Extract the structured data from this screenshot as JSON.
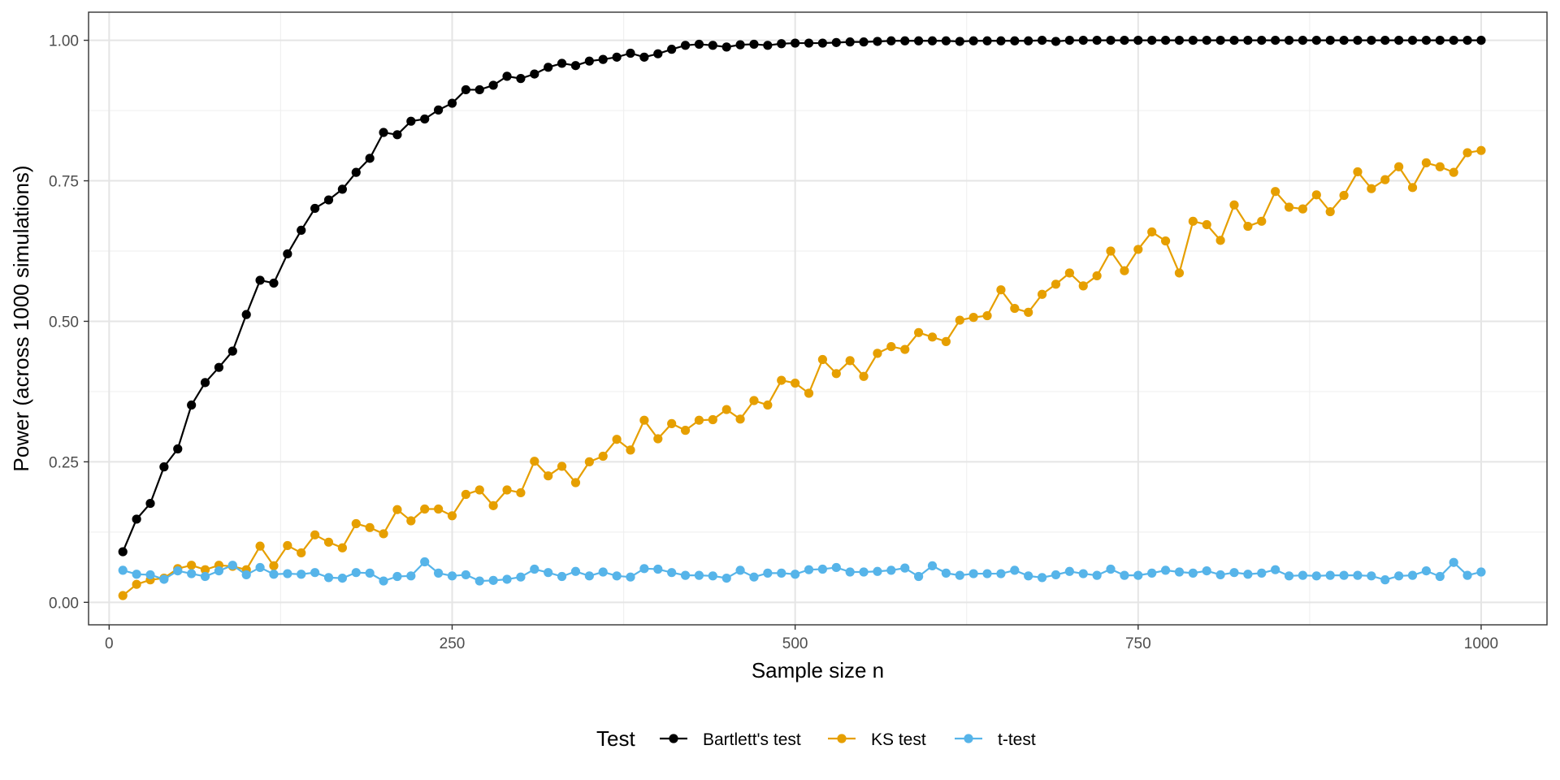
{
  "chart_data": {
    "type": "line",
    "xlabel": "Sample size n",
    "ylabel": "Power (across 1000 simulations)",
    "xlim": [
      -15,
      1048
    ],
    "ylim": [
      -0.04,
      1.05
    ],
    "x_ticks": [
      0,
      250,
      500,
      750,
      1000
    ],
    "x_tick_labels": [
      "0",
      "250",
      "500",
      "750",
      "1000"
    ],
    "y_ticks": [
      0,
      0.25,
      0.5,
      0.75,
      1.0
    ],
    "y_tick_labels": [
      "0.00",
      "0.25",
      "0.50",
      "0.75",
      "1.00"
    ],
    "grid": true,
    "legend": {
      "title": "Test",
      "position": "bottom"
    },
    "x": [
      10,
      20,
      30,
      40,
      50,
      60,
      70,
      80,
      90,
      100,
      110,
      120,
      130,
      140,
      150,
      160,
      170,
      180,
      190,
      200,
      210,
      220,
      230,
      240,
      250,
      260,
      270,
      280,
      290,
      300,
      310,
      320,
      330,
      340,
      350,
      360,
      370,
      380,
      390,
      400,
      410,
      420,
      430,
      440,
      450,
      460,
      470,
      480,
      490,
      500,
      510,
      520,
      530,
      540,
      550,
      560,
      570,
      580,
      590,
      600,
      610,
      620,
      630,
      640,
      650,
      660,
      670,
      680,
      690,
      700,
      710,
      720,
      730,
      740,
      750,
      760,
      770,
      780,
      790,
      800,
      810,
      820,
      830,
      840,
      850,
      860,
      870,
      880,
      890,
      900,
      910,
      920,
      930,
      940,
      950,
      960,
      970,
      980,
      990,
      1000
    ],
    "series": [
      {
        "name": "Bartlett's test",
        "color": "#000000",
        "values": [
          0.09,
          0.148,
          0.176,
          0.241,
          0.273,
          0.351,
          0.391,
          0.418,
          0.447,
          0.512,
          0.573,
          0.568,
          0.62,
          0.662,
          0.701,
          0.716,
          0.735,
          0.765,
          0.79,
          0.836,
          0.832,
          0.856,
          0.86,
          0.876,
          0.888,
          0.912,
          0.912,
          0.92,
          0.936,
          0.932,
          0.94,
          0.952,
          0.959,
          0.955,
          0.963,
          0.966,
          0.97,
          0.977,
          0.97,
          0.976,
          0.984,
          0.991,
          0.993,
          0.991,
          0.988,
          0.992,
          0.993,
          0.991,
          0.994,
          0.995,
          0.995,
          0.995,
          0.996,
          0.997,
          0.997,
          0.998,
          0.999,
          0.999,
          0.999,
          0.999,
          0.999,
          0.998,
          0.999,
          0.999,
          0.999,
          0.999,
          0.999,
          1.0,
          0.998,
          1.0,
          1.0,
          1.0,
          1.0,
          1.0,
          1.0,
          1.0,
          1.0,
          1.0,
          1.0,
          1.0,
          1.0,
          1.0,
          1.0,
          1.0,
          1.0,
          1.0,
          1.0,
          1.0,
          1.0,
          1.0,
          1.0,
          1.0,
          1.0,
          1.0,
          1.0,
          1.0,
          1.0,
          1.0,
          1.0,
          1.0
        ]
      },
      {
        "name": "KS test",
        "color": "#E69F00",
        "values": [
          0.012,
          0.032,
          0.04,
          0.043,
          0.06,
          0.066,
          0.058,
          0.066,
          0.064,
          0.058,
          0.1,
          0.065,
          0.101,
          0.088,
          0.12,
          0.107,
          0.097,
          0.14,
          0.133,
          0.122,
          0.165,
          0.145,
          0.166,
          0.166,
          0.154,
          0.192,
          0.2,
          0.172,
          0.2,
          0.195,
          0.251,
          0.225,
          0.242,
          0.213,
          0.25,
          0.26,
          0.29,
          0.271,
          0.324,
          0.291,
          0.318,
          0.306,
          0.324,
          0.325,
          0.343,
          0.326,
          0.359,
          0.351,
          0.395,
          0.39,
          0.372,
          0.432,
          0.407,
          0.43,
          0.402,
          0.443,
          0.455,
          0.45,
          0.48,
          0.472,
          0.464,
          0.502,
          0.507,
          0.51,
          0.556,
          0.523,
          0.516,
          0.548,
          0.566,
          0.586,
          0.563,
          0.581,
          0.625,
          0.59,
          0.628,
          0.659,
          0.643,
          0.586,
          0.678,
          0.672,
          0.644,
          0.707,
          0.669,
          0.678,
          0.731,
          0.703,
          0.7,
          0.725,
          0.695,
          0.724,
          0.766,
          0.736,
          0.752,
          0.775,
          0.738,
          0.782,
          0.775,
          0.765,
          0.8,
          0.804
        ]
      },
      {
        "name": "t-test",
        "color": "#56B4E9",
        "values": [
          0.057,
          0.05,
          0.049,
          0.041,
          0.056,
          0.051,
          0.046,
          0.056,
          0.066,
          0.049,
          0.062,
          0.05,
          0.051,
          0.05,
          0.053,
          0.044,
          0.043,
          0.053,
          0.052,
          0.038,
          0.046,
          0.047,
          0.072,
          0.052,
          0.047,
          0.049,
          0.038,
          0.039,
          0.041,
          0.045,
          0.059,
          0.053,
          0.046,
          0.055,
          0.047,
          0.054,
          0.047,
          0.045,
          0.06,
          0.059,
          0.053,
          0.048,
          0.048,
          0.047,
          0.043,
          0.057,
          0.045,
          0.052,
          0.052,
          0.05,
          0.058,
          0.059,
          0.062,
          0.054,
          0.054,
          0.055,
          0.057,
          0.061,
          0.046,
          0.065,
          0.052,
          0.048,
          0.051,
          0.051,
          0.051,
          0.057,
          0.047,
          0.044,
          0.049,
          0.055,
          0.051,
          0.048,
          0.059,
          0.048,
          0.048,
          0.052,
          0.057,
          0.054,
          0.052,
          0.056,
          0.049,
          0.053,
          0.05,
          0.052,
          0.058,
          0.047,
          0.048,
          0.047,
          0.048,
          0.048,
          0.048,
          0.047,
          0.04,
          0.047,
          0.048,
          0.056,
          0.046,
          0.071,
          0.048,
          0.054
        ]
      }
    ]
  }
}
